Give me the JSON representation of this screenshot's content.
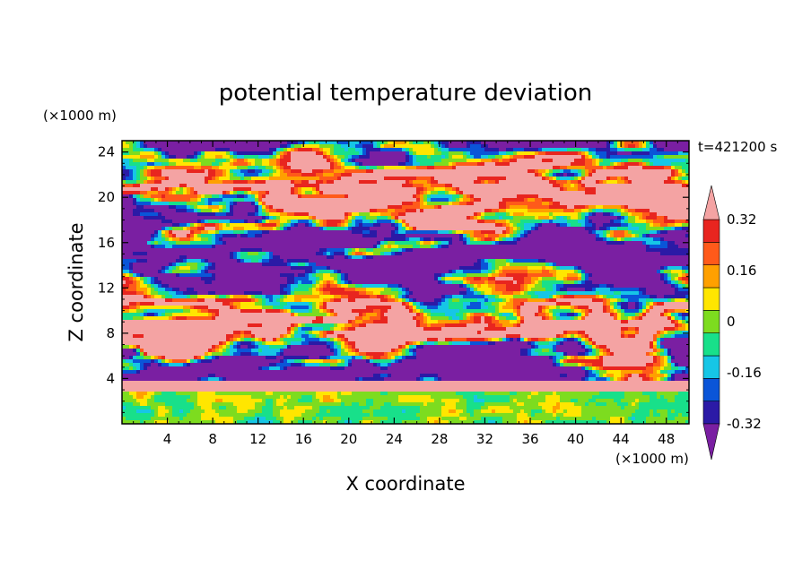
{
  "chart_data": {
    "type": "heatmap",
    "title": "potential temperature deviation",
    "time_label": "t=421200 s",
    "xlabel": "X coordinate",
    "ylabel": "Z coordinate",
    "x_units": "(×1000 m)",
    "y_units": "(×1000 m)",
    "xlim": [
      0,
      50
    ],
    "ylim": [
      0,
      25
    ],
    "x_ticks": [
      4,
      8,
      12,
      16,
      20,
      24,
      28,
      32,
      36,
      40,
      44,
      48
    ],
    "y_ticks": [
      4,
      8,
      12,
      16,
      20,
      24
    ],
    "colorbar": {
      "levels": [
        -0.4,
        -0.32,
        -0.24,
        -0.16,
        -0.08,
        0,
        0.08,
        0.16,
        0.24,
        0.32,
        0.4
      ],
      "labels": [
        "0.32",
        "0.16",
        "0",
        "-0.16",
        "-0.32"
      ],
      "label_values": [
        0.32,
        0.16,
        0,
        -0.16,
        -0.32
      ],
      "colors_low_to_high": [
        "#7a1fa2",
        "#2b1aa6",
        "#0a55d8",
        "#16c6e6",
        "#18e08a",
        "#7ddc1f",
        "#ffe600",
        "#ffa000",
        "#ff5a1a",
        "#e8251f",
        "#f4a3a3"
      ],
      "extend": "both"
    },
    "layers": [
      {
        "z_range": [
          0,
          3
        ],
        "description_value_range": [
          -0.16,
          0.24
        ]
      },
      {
        "z_range": [
          3,
          4
        ],
        "value": 0.4
      },
      {
        "z_range": [
          4,
          25
        ],
        "value_range": [
          -0.4,
          0.4
        ]
      }
    ]
  }
}
